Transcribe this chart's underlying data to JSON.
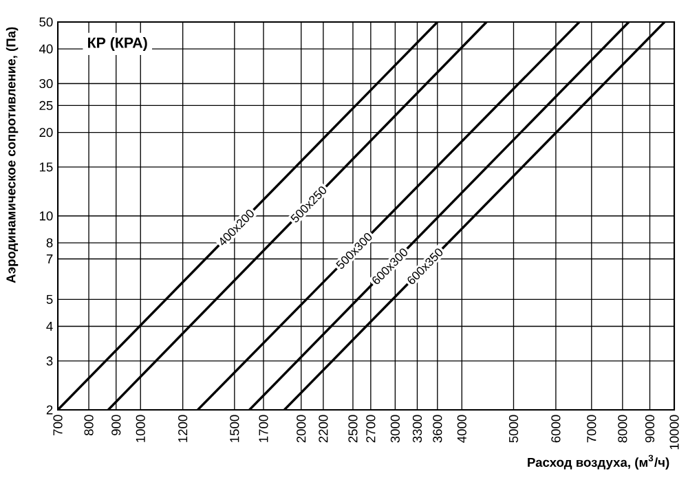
{
  "chart_data": {
    "type": "line",
    "title": "КР (КРА)",
    "xlabel": "Расход воздуха, (м$^{3}$/ч)",
    "ylabel": "Аэродинамическое сопротивление, (Па)",
    "log": "xy",
    "grid": true,
    "xlim": [
      700,
      10000
    ],
    "ylim": [
      2,
      50
    ],
    "xticks": [
      700,
      800,
      900,
      1000,
      1200,
      1500,
      1700,
      2000,
      2200,
      2500,
      2700,
      3000,
      3300,
      3600,
      4000,
      5000,
      6000,
      7000,
      8000,
      9000,
      10000
    ],
    "yticks": [
      2,
      3,
      4,
      5,
      7,
      8,
      10,
      15,
      20,
      25,
      30,
      40,
      50
    ],
    "series": [
      {
        "name": "400x200",
        "color": "#000000",
        "x": [
          700,
          3600
        ],
        "values": [
          2,
          50
        ]
      },
      {
        "name": "500x250",
        "color": "#000000",
        "x": [
          870,
          4450
        ],
        "values": [
          2,
          50
        ]
      },
      {
        "name": "500x300",
        "color": "#000000",
        "x": [
          1280,
          6640
        ],
        "values": [
          2,
          50
        ]
      },
      {
        "name": "600x300",
        "color": "#000000",
        "x": [
          1600,
          8220
        ],
        "values": [
          2,
          50
        ]
      },
      {
        "name": "600x350",
        "color": "#000000",
        "x": [
          1860,
          9590
        ],
        "values": [
          2,
          50
        ]
      }
    ]
  }
}
